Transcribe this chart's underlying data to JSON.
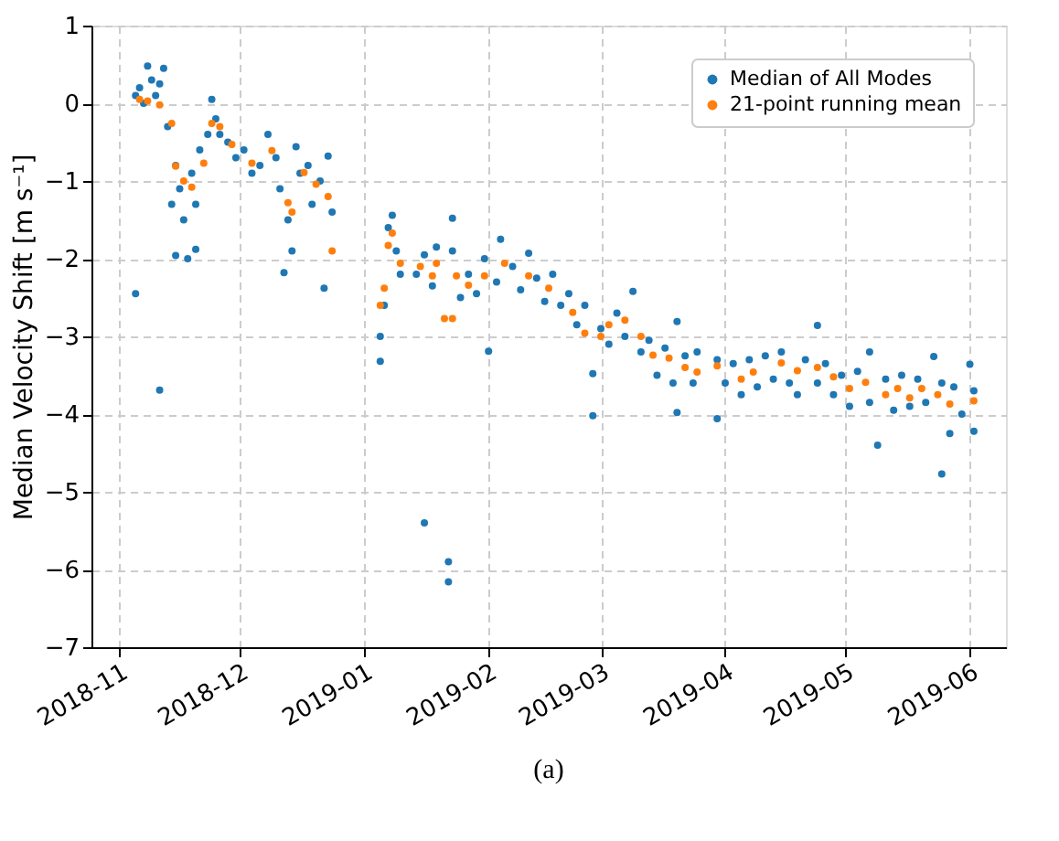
{
  "chart_data": {
    "type": "scatter",
    "ylabel": "Median Velocity Shift [m s⁻¹]",
    "annotations": [
      "(a)"
    ],
    "xlim": [
      "2018-10-25",
      "2019-06-10"
    ],
    "xticks": [
      "2018-11",
      "2018-12",
      "2019-01",
      "2019-02",
      "2019-03",
      "2019-04",
      "2019-05",
      "2019-06"
    ],
    "ylim": [
      -7,
      1
    ],
    "yticks": [
      -7,
      -6,
      -5,
      -4,
      -3,
      -2,
      -1,
      0,
      1
    ],
    "grid": true,
    "legend": "top right",
    "marker": "circle",
    "series": [
      {
        "name": "Median of All Modes",
        "color": "#1f77b4",
        "x": [
          "2018-11-05",
          "2018-11-05",
          "2018-11-06",
          "2018-11-07",
          "2018-11-08",
          "2018-11-09",
          "2018-11-10",
          "2018-11-11",
          "2018-11-11",
          "2018-11-12",
          "2018-11-13",
          "2018-11-14",
          "2018-11-15",
          "2018-11-15",
          "2018-11-16",
          "2018-11-17",
          "2018-11-18",
          "2018-11-19",
          "2018-11-20",
          "2018-11-20",
          "2018-11-21",
          "2018-11-23",
          "2018-11-24",
          "2018-11-25",
          "2018-11-26",
          "2018-11-28",
          "2018-11-30",
          "2018-12-02",
          "2018-12-04",
          "2018-12-06",
          "2018-12-08",
          "2018-12-10",
          "2018-12-11",
          "2018-12-12",
          "2018-12-13",
          "2018-12-14",
          "2018-12-15",
          "2018-12-16",
          "2018-12-18",
          "2018-12-19",
          "2018-12-21",
          "2018-12-22",
          "2018-12-23",
          "2018-12-24",
          "2019-01-05",
          "2019-01-05",
          "2019-01-06",
          "2019-01-07",
          "2019-01-08",
          "2019-01-09",
          "2019-01-10",
          "2019-01-14",
          "2019-01-16",
          "2019-01-16",
          "2019-01-18",
          "2019-01-19",
          "2019-01-22",
          "2019-01-22",
          "2019-01-23",
          "2019-01-23",
          "2019-01-25",
          "2019-01-27",
          "2019-01-29",
          "2019-01-31",
          "2019-02-01",
          "2019-02-03",
          "2019-02-04",
          "2019-02-07",
          "2019-02-09",
          "2019-02-11",
          "2019-02-13",
          "2019-02-15",
          "2019-02-17",
          "2019-02-19",
          "2019-02-21",
          "2019-02-23",
          "2019-02-25",
          "2019-02-27",
          "2019-02-27",
          "2019-03-01",
          "2019-03-03",
          "2019-03-05",
          "2019-03-07",
          "2019-03-09",
          "2019-03-11",
          "2019-03-13",
          "2019-03-15",
          "2019-03-17",
          "2019-03-19",
          "2019-03-20",
          "2019-03-20",
          "2019-03-22",
          "2019-03-24",
          "2019-03-25",
          "2019-03-30",
          "2019-03-30",
          "2019-04-01",
          "2019-04-03",
          "2019-04-05",
          "2019-04-07",
          "2019-04-09",
          "2019-04-11",
          "2019-04-13",
          "2019-04-15",
          "2019-04-17",
          "2019-04-19",
          "2019-04-21",
          "2019-04-24",
          "2019-04-24",
          "2019-04-26",
          "2019-04-28",
          "2019-04-30",
          "2019-05-02",
          "2019-05-04",
          "2019-05-07",
          "2019-05-07",
          "2019-05-09",
          "2019-05-11",
          "2019-05-13",
          "2019-05-15",
          "2019-05-17",
          "2019-05-19",
          "2019-05-21",
          "2019-05-23",
          "2019-05-25",
          "2019-05-25",
          "2019-05-27",
          "2019-05-28",
          "2019-05-30",
          "2019-06-01",
          "2019-06-02",
          "2019-06-02"
        ],
        "values": [
          -2.45,
          0.1,
          0.2,
          0.0,
          0.48,
          0.3,
          0.1,
          -3.69,
          0.25,
          0.45,
          -0.3,
          -1.3,
          -1.96,
          -0.8,
          -1.1,
          -1.5,
          -2.0,
          -0.9,
          -1.88,
          -1.3,
          -0.6,
          -0.4,
          0.05,
          -0.2,
          -0.4,
          -0.5,
          -0.7,
          -0.6,
          -0.9,
          -0.8,
          -0.4,
          -0.7,
          -1.1,
          -2.18,
          -1.5,
          -1.9,
          -0.56,
          -0.9,
          -0.8,
          -1.3,
          -1.0,
          -2.38,
          -0.68,
          -1.4,
          -3.32,
          -3.0,
          -2.6,
          -1.6,
          -1.44,
          -1.9,
          -2.2,
          -2.2,
          -5.4,
          -1.95,
          -2.35,
          -1.85,
          -5.9,
          -6.16,
          -1.48,
          -1.9,
          -2.5,
          -2.2,
          -2.45,
          -2.0,
          -3.19,
          -2.3,
          -1.75,
          -2.1,
          -2.4,
          -1.93,
          -2.25,
          -2.55,
          -2.2,
          -2.6,
          -2.45,
          -2.85,
          -2.6,
          -3.48,
          -4.02,
          -2.9,
          -3.1,
          -2.7,
          -3.0,
          -2.42,
          -3.2,
          -3.05,
          -3.5,
          -3.15,
          -3.6,
          -2.81,
          -3.98,
          -3.25,
          -3.6,
          -3.2,
          -4.06,
          -3.3,
          -3.6,
          -3.35,
          -3.75,
          -3.3,
          -3.65,
          -3.25,
          -3.55,
          -3.2,
          -3.6,
          -3.75,
          -3.3,
          -2.86,
          -3.6,
          -3.35,
          -3.75,
          -3.5,
          -3.9,
          -3.45,
          -3.2,
          -3.85,
          -4.4,
          -3.55,
          -3.95,
          -3.5,
          -3.9,
          -3.55,
          -3.85,
          -3.26,
          -4.77,
          -3.6,
          -4.25,
          -3.65,
          -4.0,
          -3.36,
          -4.22,
          -3.7
        ]
      },
      {
        "name": "21-point running mean",
        "color": "#ff7f0e",
        "x": [
          "2018-11-06",
          "2018-11-08",
          "2018-11-11",
          "2018-11-14",
          "2018-11-15",
          "2018-11-17",
          "2018-11-19",
          "2018-11-22",
          "2018-11-24",
          "2018-11-26",
          "2018-11-29",
          "2018-12-04",
          "2018-12-09",
          "2018-12-13",
          "2018-12-14",
          "2018-12-17",
          "2018-12-20",
          "2018-12-23",
          "2018-12-24",
          "2019-01-05",
          "2019-01-06",
          "2019-01-07",
          "2019-01-08",
          "2019-01-10",
          "2019-01-15",
          "2019-01-18",
          "2019-01-19",
          "2019-01-21",
          "2019-01-23",
          "2019-01-24",
          "2019-01-27",
          "2019-01-31",
          "2019-02-05",
          "2019-02-11",
          "2019-02-16",
          "2019-02-22",
          "2019-02-25",
          "2019-03-01",
          "2019-03-03",
          "2019-03-07",
          "2019-03-11",
          "2019-03-14",
          "2019-03-18",
          "2019-03-22",
          "2019-03-25",
          "2019-03-30",
          "2019-04-05",
          "2019-04-08",
          "2019-04-15",
          "2019-04-19",
          "2019-04-24",
          "2019-04-28",
          "2019-05-02",
          "2019-05-06",
          "2019-05-11",
          "2019-05-14",
          "2019-05-17",
          "2019-05-20",
          "2019-05-24",
          "2019-05-27",
          "2019-06-02"
        ],
        "values": [
          0.05,
          0.03,
          -0.02,
          -0.26,
          -0.81,
          -1.0,
          -1.08,
          -0.77,
          -0.26,
          -0.3,
          -0.53,
          -0.77,
          -0.61,
          -1.28,
          -1.4,
          -0.89,
          -1.04,
          -1.2,
          -1.9,
          -2.6,
          -2.38,
          -1.83,
          -1.67,
          -2.06,
          -2.1,
          -2.22,
          -2.06,
          -2.77,
          -2.77,
          -2.22,
          -2.34,
          -2.22,
          -2.06,
          -2.22,
          -2.38,
          -2.69,
          -2.96,
          -3.0,
          -2.85,
          -2.79,
          -3.0,
          -3.24,
          -3.28,
          -3.4,
          -3.46,
          -3.38,
          -3.55,
          -3.46,
          -3.34,
          -3.44,
          -3.4,
          -3.52,
          -3.67,
          -3.59,
          -3.75,
          -3.67,
          -3.79,
          -3.67,
          -3.75,
          -3.87,
          -3.83
        ]
      }
    ]
  }
}
